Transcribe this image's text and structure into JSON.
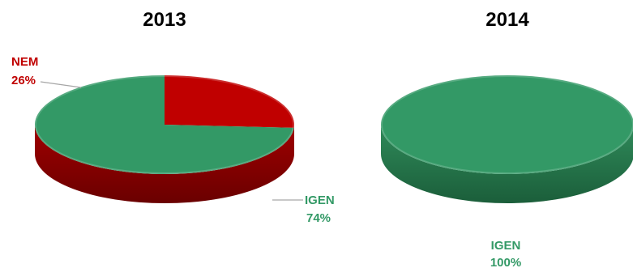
{
  "chart_data": [
    {
      "type": "pie",
      "title": "2013",
      "categories": [
        "NEM",
        "IGEN"
      ],
      "values": [
        26,
        74
      ],
      "data_labels": [
        {
          "category": "NEM",
          "value": "26%"
        },
        {
          "category": "IGEN",
          "value": "74%"
        }
      ],
      "colors": [
        "#c00000",
        "#339966"
      ],
      "style": "3d",
      "legend": "none"
    },
    {
      "type": "pie",
      "title": "2014",
      "categories": [
        "IGEN"
      ],
      "values": [
        100
      ],
      "data_labels": [
        {
          "category": "IGEN",
          "value": "100%"
        }
      ],
      "colors": [
        "#339966"
      ],
      "style": "3d",
      "legend": "none"
    }
  ]
}
